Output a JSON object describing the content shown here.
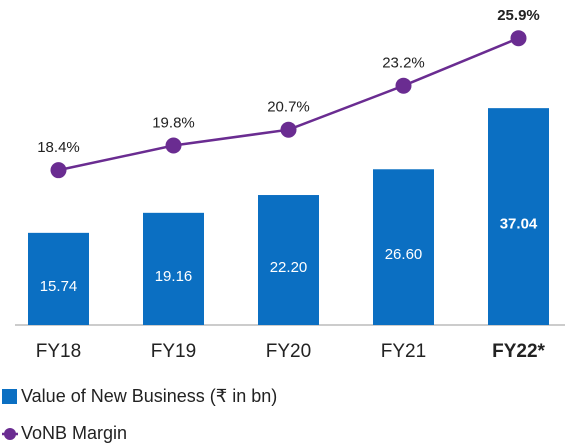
{
  "chart_data": {
    "type": "bar",
    "categories": [
      "FY18",
      "FY19",
      "FY20",
      "FY21",
      "FY22*"
    ],
    "series": [
      {
        "name": "Value of New Business (₹ in bn)",
        "type": "bar",
        "color": "#0b6fc2",
        "values": [
          15.74,
          19.16,
          22.2,
          26.6,
          37.04
        ],
        "value_labels": [
          "15.74",
          "19.16",
          "22.20",
          "26.60",
          "37.04"
        ]
      },
      {
        "name": "VoNB Margin",
        "type": "line",
        "axis": "y2",
        "color": "#6a2c91",
        "values": [
          18.4,
          19.8,
          20.7,
          23.2,
          25.9
        ],
        "value_labels": [
          "18.4%",
          "19.8%",
          "20.7%",
          "23.2%",
          "25.9%"
        ]
      }
    ],
    "ylim": [
      0,
      55
    ],
    "y2lim": [
      9.6,
      27.9
    ]
  }
}
